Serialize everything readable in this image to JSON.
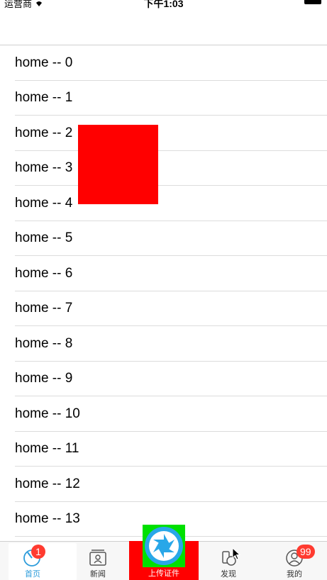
{
  "status_bar": {
    "carrier": "运营商",
    "time": "下午1:03"
  },
  "table": {
    "rows": [
      "home -- 0",
      "home -- 1",
      "home -- 2",
      "home -- 3",
      "home -- 4",
      "home -- 5",
      "home -- 6",
      "home -- 7",
      "home -- 8",
      "home -- 9",
      "home -- 10",
      "home -- 11",
      "home -- 12",
      "home -- 13"
    ]
  },
  "tab_bar": {
    "home": {
      "label": "首页",
      "badge": "1",
      "icon": "home-dial-icon"
    },
    "news": {
      "label": "新闻",
      "icon": "contacts-icon"
    },
    "upload": {
      "label": "上传证件",
      "icon": "camera-aperture-icon"
    },
    "discover": {
      "label": "发现",
      "icon": "discover-icon"
    },
    "mine": {
      "label": "我的",
      "badge": "99",
      "icon": "person-icon"
    }
  },
  "colors": {
    "accent": "#2d9cdb",
    "badge": "#ff3b30",
    "overlay_red": "#ff0000",
    "camera_green": "#00e000"
  }
}
